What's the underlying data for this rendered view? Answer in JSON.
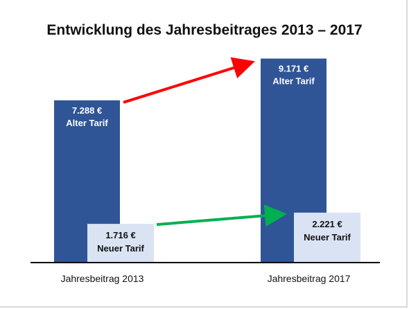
{
  "chart_data": {
    "type": "bar",
    "title": "Entwicklung des Jahresbeitrages 2013 – 2017",
    "categories": [
      "Jahresbeitrag 2013",
      "Jahresbeitrag 2017"
    ],
    "series": [
      {
        "name": "Alter Tarif",
        "values": [
          7288,
          9171
        ],
        "labels": [
          "7.288 €",
          "9.171 €"
        ],
        "color": "#2f5597"
      },
      {
        "name": "Neuer Tarif",
        "values": [
          1716,
          2221
        ],
        "labels": [
          "1.716 €",
          "2.221 €"
        ],
        "color": "#dae3f3"
      }
    ],
    "ylim": [
      0,
      9500
    ],
    "grid": false,
    "arrows": [
      {
        "series": "Alter Tarif",
        "color": "#ff0000"
      },
      {
        "series": "Neuer Tarif",
        "color": "#00b050"
      }
    ]
  }
}
